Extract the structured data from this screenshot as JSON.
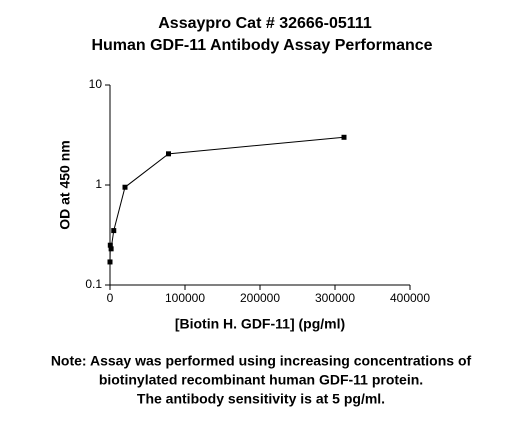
{
  "chart_data": {
    "type": "line",
    "title": [
      "Assaypro Cat # 32666-05111",
      "Human GDF-11 Antibody Assay Performance"
    ],
    "x_label": "[Biotin H. GDF-11] (pg/ml)",
    "y_label": "OD at 450 nm",
    "x": [
      0,
      400,
      1500,
      5000,
      20000,
      78000,
      312000
    ],
    "series": [
      {
        "name": "OD",
        "color": "#000000",
        "values": [
          0.17,
          0.25,
          0.23,
          0.35,
          0.95,
          2.05,
          3.0
        ]
      }
    ],
    "xlim": [
      0,
      400000
    ],
    "xticks": [
      0,
      100000,
      200000,
      300000,
      400000
    ],
    "ylim": [
      0.1,
      10
    ],
    "yticks": [
      0.1,
      1,
      10
    ],
    "yscale": "log",
    "note": [
      "Note: Assay was performed using increasing concentrations of",
      "biotinylated recombinant human GDF-11 protein.",
      "The antibody sensitivity is at 5 pg/ml."
    ]
  }
}
